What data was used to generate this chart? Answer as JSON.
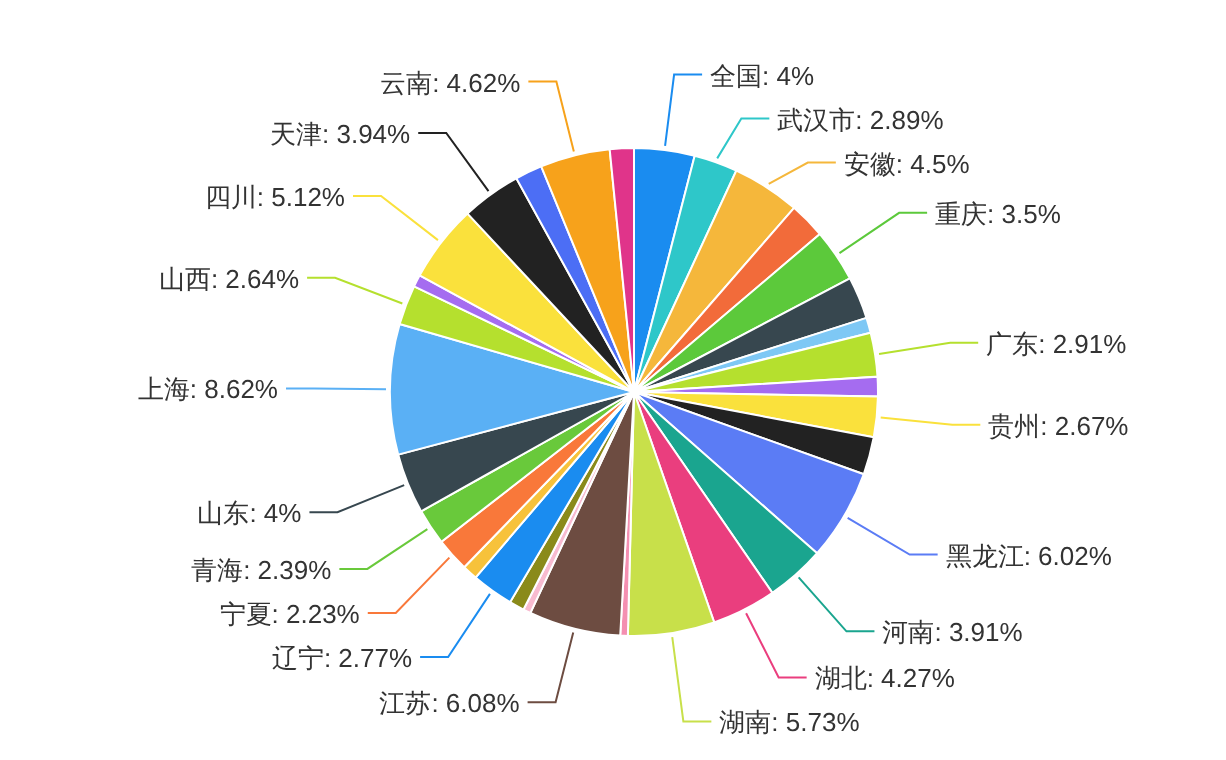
{
  "chart_data": {
    "type": "pie",
    "categories": [
      "全国",
      "武汉市",
      "安徽",
      null,
      "重庆",
      null,
      null,
      "广东",
      null,
      "贵州",
      null,
      "黑龙江",
      "河南",
      "湖北",
      "湖南",
      null,
      "江苏",
      null,
      null,
      "辽宁",
      null,
      "宁夏",
      "青海",
      "山东",
      "上海",
      "山西",
      null,
      "四川",
      "天津",
      null,
      "云南",
      null
    ],
    "values": [
      4,
      2.89,
      4.5,
      2.4,
      3.5,
      2.8,
      1.0,
      2.91,
      1.3,
      2.67,
      2.5,
      6.02,
      3.91,
      4.27,
      5.73,
      0.5,
      6.08,
      0.5,
      1.0,
      2.77,
      1.0,
      2.23,
      2.39,
      4,
      8.62,
      2.64,
      0.8,
      5.12,
      3.94,
      1.8,
      4.62,
      1.59
    ],
    "value_labels": [
      "4%",
      "2.89%",
      "4.5%",
      null,
      "3.5%",
      null,
      null,
      "2.91%",
      null,
      "2.67%",
      null,
      "6.02%",
      "3.91%",
      "4.27%",
      "5.73%",
      null,
      "6.08%",
      null,
      null,
      "2.77%",
      null,
      "2.23%",
      "2.39%",
      "4%",
      "8.62%",
      "2.64%",
      null,
      "5.12%",
      "3.94%",
      null,
      "4.62%",
      null
    ],
    "colors": [
      "#1a8cf0",
      "#2ec7c9",
      "#f5b73b",
      "#f26b3a",
      "#5cc93b",
      "#37474f",
      "#7ec8f5",
      "#b5e02e",
      "#a56cf0",
      "#fae13c",
      "#222222",
      "#5b7cf5",
      "#1aa58f",
      "#ea3e7e",
      "#c8e04a",
      "#f48fb1",
      "#6d4c41",
      "#f8bbd0",
      "#8a8a1a",
      "#1a8cf0",
      "#f7c23b",
      "#f9783a",
      "#69c93b",
      "#37474f",
      "#5ab0f5",
      "#b5e02e",
      "#a56cf0",
      "#fae13c",
      "#222222",
      "#4c6ef5",
      "#f7a21b",
      "#e0348a"
    ]
  }
}
